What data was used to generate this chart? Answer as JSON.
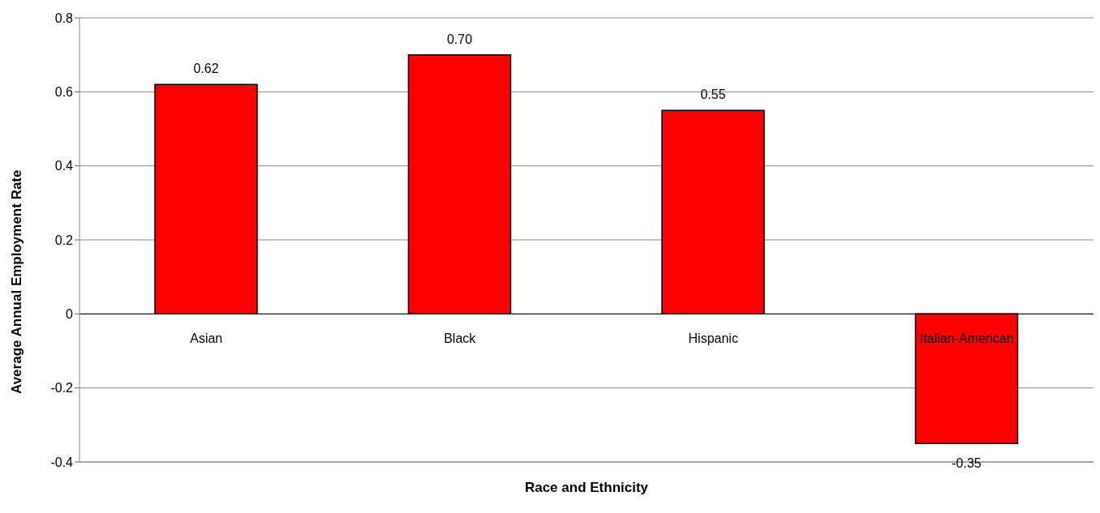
{
  "chart_data": {
    "type": "bar",
    "xlabel": "Race and Ethnicity",
    "ylabel": "Average Annual Employment Rate",
    "categories": [
      "Asian",
      "Black",
      "Hispanic",
      "Italian-American"
    ],
    "values": [
      0.62,
      0.7,
      0.55,
      -0.35
    ],
    "value_labels": [
      "0.62",
      "0.70",
      "0.55",
      "-0.35"
    ],
    "color": "#ff0000",
    "ylim": [
      -0.4,
      0.8
    ],
    "yticks": [
      -0.4,
      -0.2,
      0,
      0.2,
      0.4,
      0.6,
      0.8
    ],
    "grid": "y",
    "legend": false
  }
}
